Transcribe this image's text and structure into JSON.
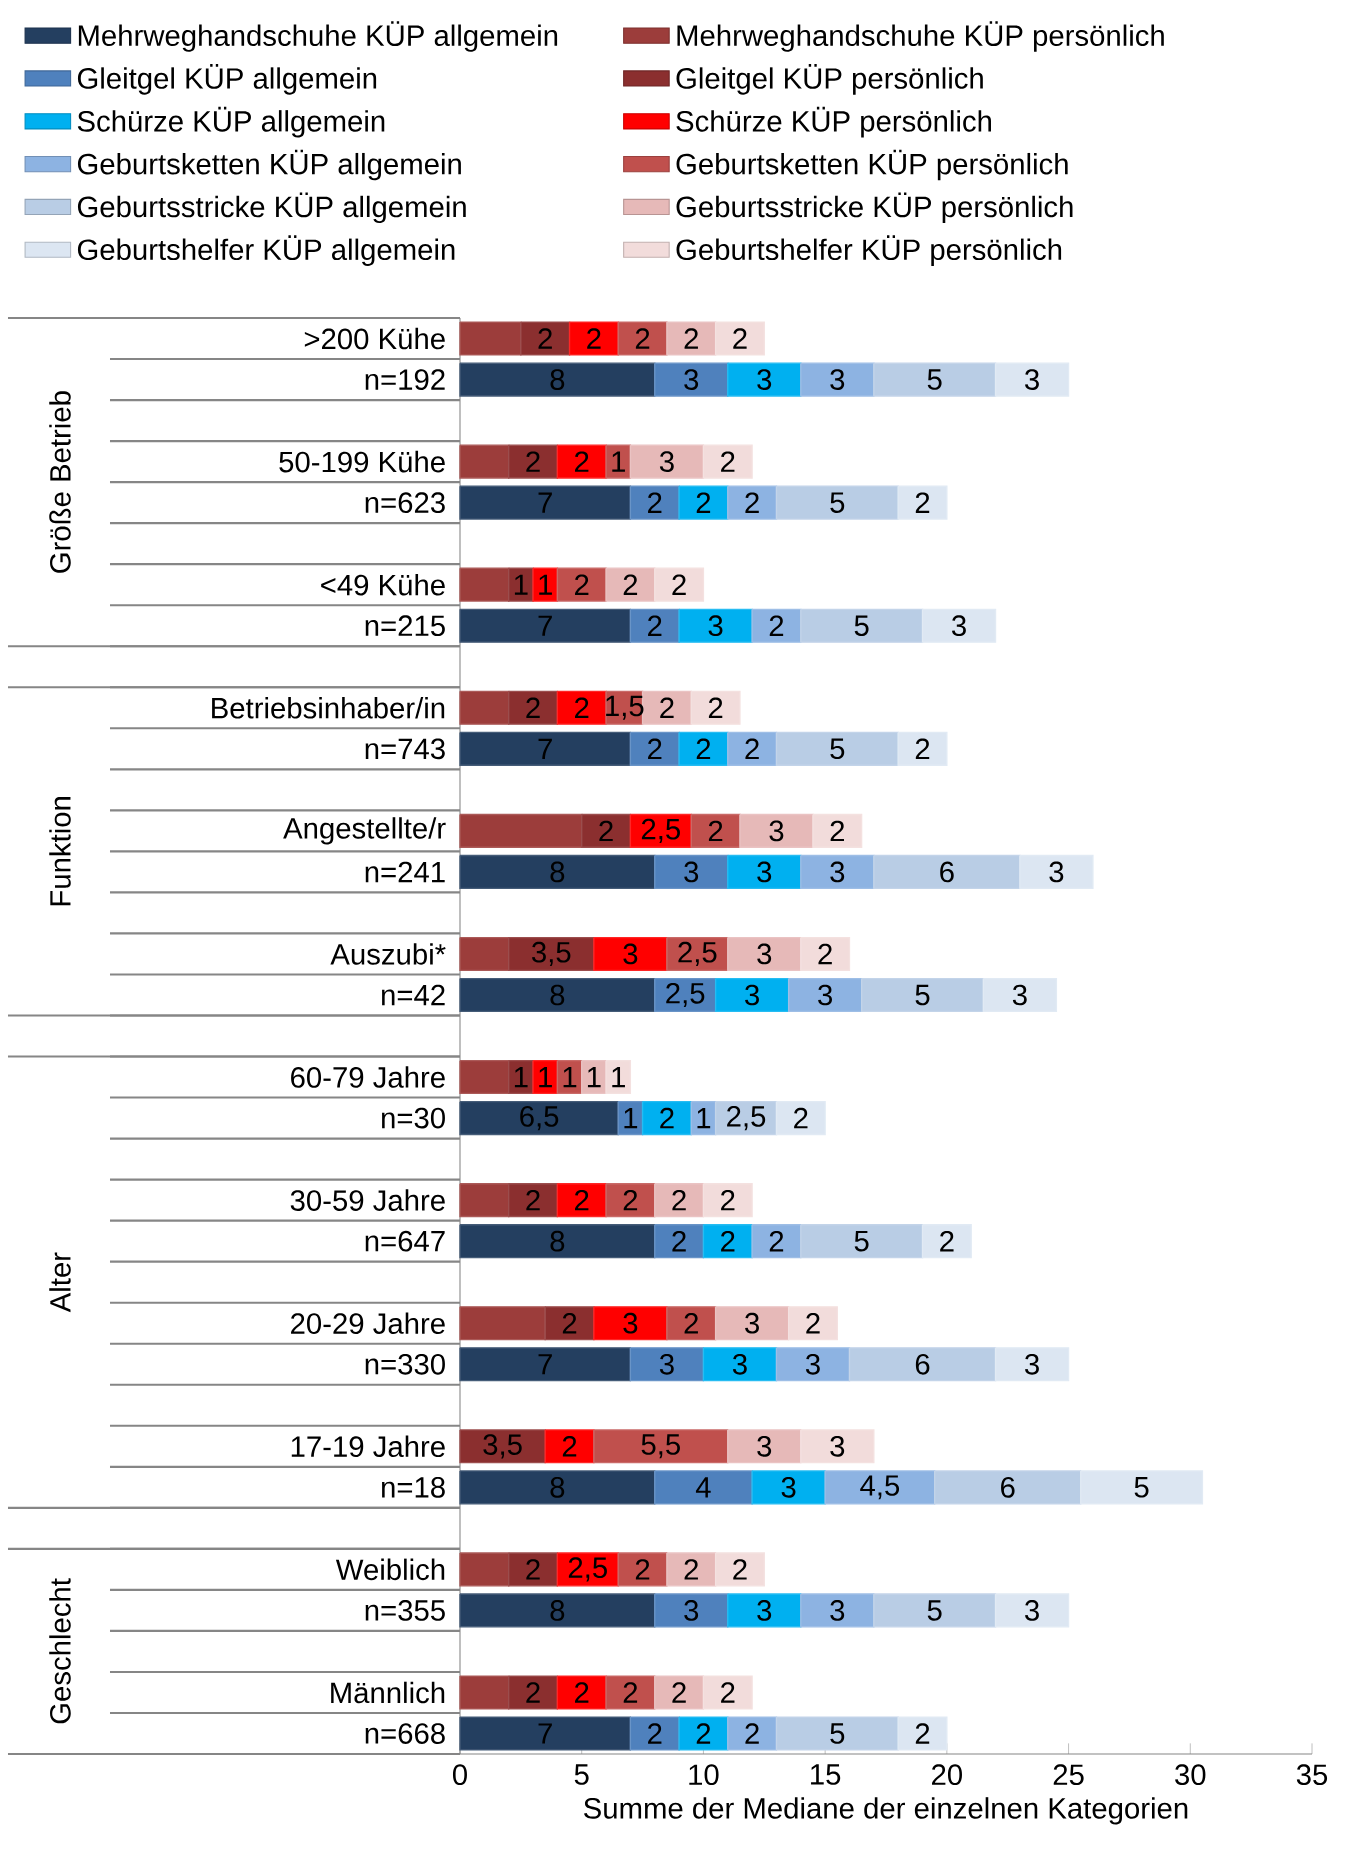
{
  "chart_data": {
    "type": "bar",
    "orientation": "horizontal",
    "stacked": true,
    "legend": "top",
    "xlabel": "Summe der Mediane der einzelnen Kategorien",
    "xlim": [
      0,
      35
    ],
    "xticks": [
      0,
      5,
      10,
      15,
      20,
      25,
      30,
      35
    ],
    "annotations": [
      "Größe Betrieb",
      "Funktion",
      "Alter",
      "Geschlecht"
    ],
    "categories": [
      ">200 Kühe",
      "n=192",
      "50-199 Kühe",
      "n=623",
      "<49 Kühe",
      "n=215",
      "Betriebsinhaber/in",
      "n=743",
      "Angestellte/r",
      "n=241",
      "Auszubi*",
      "n=42",
      "60-79 Jahre",
      "n=30",
      "30-59 Jahre",
      "n=647",
      "20-29 Jahre",
      "n=330",
      "17-19 Jahre",
      "n=18",
      "Weiblich",
      "n=355",
      "Männlich",
      "n=668"
    ],
    "series": [
      {
        "name": "Mehrweghandschuhe KÜP allgemein",
        "color": "#243f60",
        "values": [
          null,
          8,
          null,
          7,
          null,
          7,
          null,
          7,
          null,
          8,
          null,
          8,
          null,
          6.5,
          null,
          8,
          null,
          7,
          null,
          8,
          null,
          8,
          null,
          7
        ],
        "value_labels": [
          null,
          "8",
          null,
          "7",
          null,
          "7",
          null,
          "7",
          null,
          "8",
          null,
          "8",
          null,
          "6,5",
          null,
          "8",
          null,
          "7",
          null,
          "8",
          null,
          "8",
          null,
          "7"
        ]
      },
      {
        "name": "Mehrweghandschuhe KÜP persönlich",
        "color": "#9c3d3b",
        "values": [
          2.5,
          null,
          2,
          null,
          2,
          null,
          2,
          null,
          5,
          null,
          2,
          null,
          2,
          null,
          2,
          null,
          3.5,
          null,
          null,
          null,
          2,
          null,
          2,
          null
        ]
      },
      {
        "name": "Gleitgel KÜP allgemein",
        "color": "#4f81bd",
        "values": [
          null,
          3,
          null,
          2,
          null,
          2,
          null,
          2,
          null,
          3,
          null,
          2.5,
          null,
          1,
          null,
          2,
          null,
          3,
          null,
          4,
          null,
          3,
          null,
          2
        ],
        "value_labels": [
          null,
          "3",
          null,
          "2",
          null,
          "2",
          null,
          "2",
          null,
          "3",
          null,
          "2,5",
          null,
          "1",
          null,
          "2",
          null,
          "3",
          null,
          "4",
          null,
          "3",
          null,
          "2"
        ]
      },
      {
        "name": "Gleitgel KÜP persönlich",
        "color": "#8b2f2f",
        "values": [
          2,
          null,
          2,
          null,
          1,
          null,
          2,
          null,
          2,
          null,
          3.5,
          null,
          1,
          null,
          2,
          null,
          2,
          null,
          3.5,
          null,
          2,
          null,
          2,
          null
        ],
        "value_labels": [
          "2",
          null,
          "2",
          null,
          "1",
          null,
          "2",
          null,
          "2",
          null,
          "3,5",
          null,
          "1",
          null,
          "2",
          null,
          "2",
          null,
          "3,5",
          null,
          "2",
          null,
          "2",
          null
        ]
      },
      {
        "name": "Schürze KÜP allgemein",
        "color": "#00b0f0",
        "values": [
          null,
          3,
          null,
          2,
          null,
          3,
          null,
          2,
          null,
          3,
          null,
          3,
          null,
          2,
          null,
          2,
          null,
          3,
          null,
          3,
          null,
          3,
          null,
          2
        ],
        "value_labels": [
          null,
          "3",
          null,
          "2",
          null,
          "3",
          null,
          "2",
          null,
          "3",
          null,
          "3",
          null,
          "2",
          null,
          "2",
          null,
          "3",
          null,
          "3",
          null,
          "3",
          null,
          "2"
        ]
      },
      {
        "name": "Schürze KÜP persönlich",
        "color": "#ff0000",
        "values": [
          2,
          null,
          2,
          null,
          1,
          null,
          2,
          null,
          2.5,
          null,
          3,
          null,
          1,
          null,
          2,
          null,
          3,
          null,
          2,
          null,
          2.5,
          null,
          2,
          null
        ],
        "value_labels": [
          "2",
          null,
          "2",
          null,
          "1",
          null,
          "2",
          null,
          "2,5",
          null,
          "3",
          null,
          "1",
          null,
          "2",
          null,
          "3",
          null,
          "2",
          null,
          "2,5",
          null,
          "2",
          null
        ]
      },
      {
        "name": "Geburtsketten KÜP allgemein",
        "color": "#8db3e2",
        "values": [
          null,
          3,
          null,
          2,
          null,
          2,
          null,
          2,
          null,
          3,
          null,
          3,
          null,
          1,
          null,
          2,
          null,
          3,
          null,
          4.5,
          null,
          3,
          null,
          2
        ],
        "value_labels": [
          null,
          "3",
          null,
          "2",
          null,
          "2",
          null,
          "2",
          null,
          "3",
          null,
          "3",
          null,
          "1",
          null,
          "2",
          null,
          "3",
          null,
          "4,5",
          null,
          "3",
          null,
          "2"
        ]
      },
      {
        "name": "Geburtsketten KÜP persönlich",
        "color": "#c0504d",
        "values": [
          2,
          null,
          1,
          null,
          2,
          null,
          1.5,
          null,
          2,
          null,
          2.5,
          null,
          1,
          null,
          2,
          null,
          2,
          null,
          5.5,
          null,
          2,
          null,
          2,
          null
        ],
        "value_labels": [
          "2",
          null,
          "1",
          null,
          "2",
          null,
          "1,5",
          null,
          "2",
          null,
          "2,5",
          null,
          "1",
          null,
          "2",
          null,
          "2",
          null,
          "5,5",
          null,
          "2",
          null,
          "2",
          null
        ]
      },
      {
        "name": "Geburtsstricke KÜP allgemein",
        "color": "#b9cde5",
        "values": [
          null,
          5,
          null,
          5,
          null,
          5,
          null,
          5,
          null,
          6,
          null,
          5,
          null,
          2.5,
          null,
          5,
          null,
          6,
          null,
          6,
          null,
          5,
          null,
          5
        ],
        "value_labels": [
          null,
          "5",
          null,
          "5",
          null,
          "5",
          null,
          "5",
          null,
          "6",
          null,
          "5",
          null,
          "2,5",
          null,
          "5",
          null,
          "6",
          null,
          "6",
          null,
          "5",
          null,
          "5"
        ]
      },
      {
        "name": "Geburtsstricke KÜP persönlich",
        "color": "#e6b9b8",
        "values": [
          2,
          null,
          3,
          null,
          2,
          null,
          2,
          null,
          3,
          null,
          3,
          null,
          1,
          null,
          2,
          null,
          3,
          null,
          3,
          null,
          2,
          null,
          2,
          null
        ],
        "value_labels": [
          "2",
          null,
          "3",
          null,
          "2",
          null,
          "2",
          null,
          "3",
          null,
          "3",
          null,
          "1",
          null,
          "2",
          null,
          "3",
          null,
          "3",
          null,
          "2",
          null,
          "2",
          null
        ]
      },
      {
        "name": "Geburtshelfer KÜP allgemein",
        "color": "#dce6f2",
        "values": [
          null,
          3,
          null,
          2,
          null,
          3,
          null,
          2,
          null,
          3,
          null,
          3,
          null,
          2,
          null,
          2,
          null,
          3,
          null,
          5,
          null,
          3,
          null,
          2
        ],
        "value_labels": [
          null,
          "3",
          null,
          "2",
          null,
          "3",
          null,
          "2",
          null,
          "3",
          null,
          "3",
          null,
          "2",
          null,
          "2",
          null,
          "3",
          null,
          "5",
          null,
          "3",
          null,
          "2"
        ]
      },
      {
        "name": "Geburtshelfer KÜP persönlich",
        "color": "#f2dcdb",
        "values": [
          2,
          null,
          2,
          null,
          2,
          null,
          2,
          null,
          2,
          null,
          2,
          null,
          1,
          null,
          2,
          null,
          2,
          null,
          3,
          null,
          2,
          null,
          2,
          null
        ],
        "value_labels": [
          "2",
          null,
          "2",
          null,
          "2",
          null,
          "2",
          null,
          "2",
          null,
          "2",
          null,
          "1",
          null,
          "2",
          null,
          "2",
          null,
          "3",
          null,
          "2",
          null,
          "2",
          null
        ]
      }
    ]
  }
}
